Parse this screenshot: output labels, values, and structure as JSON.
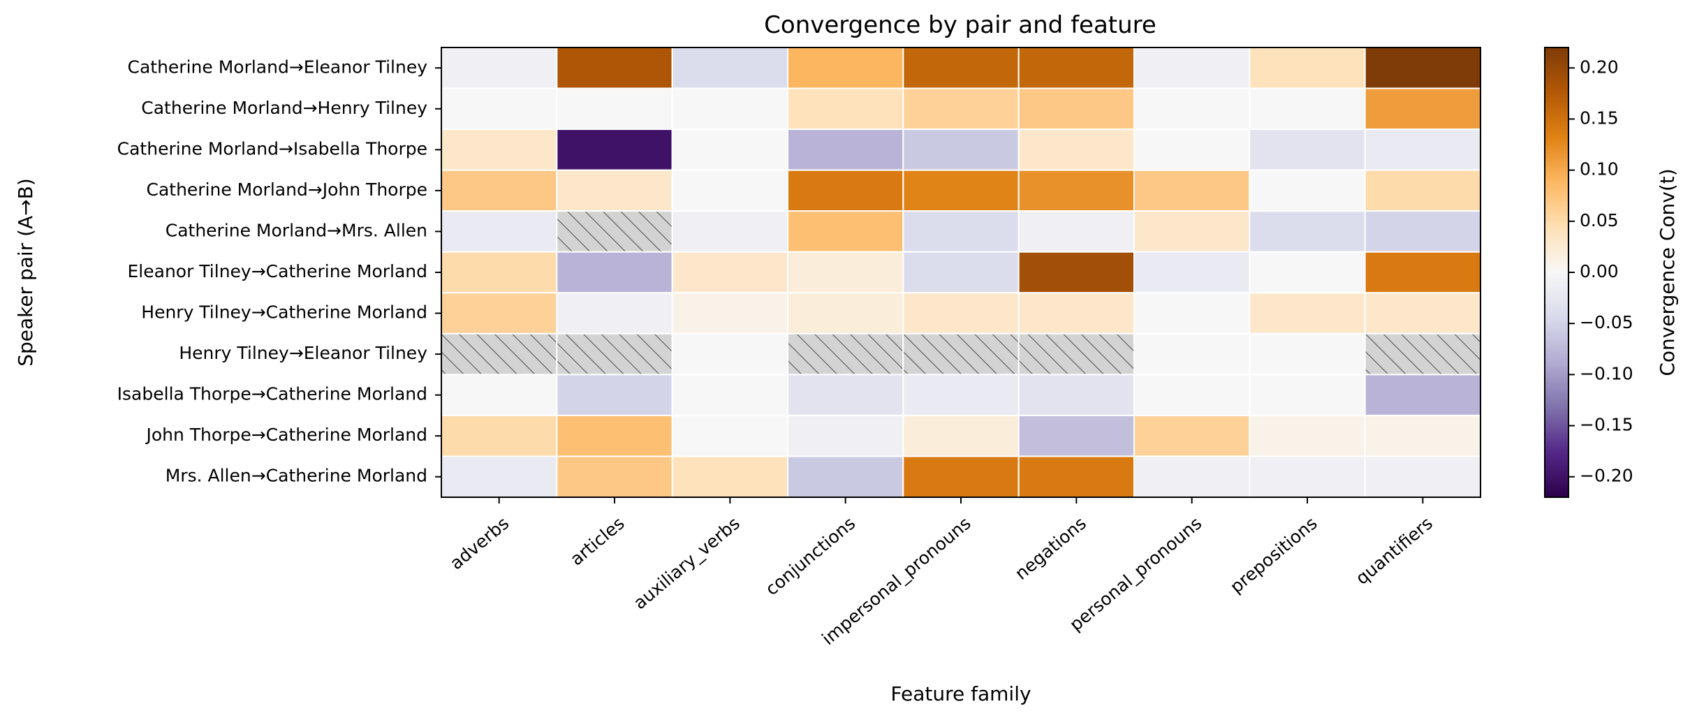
{
  "chart_data": {
    "type": "heatmap",
    "title": "Convergence by pair and feature",
    "xlabel": "Feature family",
    "ylabel": "Speaker pair (A→B)",
    "colorbar_label": "Convergence Conv(t)",
    "colormap": "PuOr_r",
    "vmin": -0.22,
    "vmax": 0.22,
    "colorbar_ticks": [
      0.2,
      0.15,
      0.1,
      0.05,
      0.0,
      -0.05,
      -0.1,
      -0.15,
      -0.2
    ],
    "colorbar_tick_labels": [
      "0.20",
      "0.15",
      "0.10",
      "0.05",
      "0.00",
      "−0.05",
      "−0.10",
      "−0.15",
      "−0.20"
    ],
    "missing_style": "gray hatched",
    "x_categories": [
      "adverbs",
      "articles",
      "auxiliary_verbs",
      "conjunctions",
      "impersonal_pronouns",
      "negations",
      "personal_pronouns",
      "prepositions",
      "quantifiers"
    ],
    "y_categories": [
      "Catherine Morland→Eleanor Tilney",
      "Catherine Morland→Henry Tilney",
      "Catherine Morland→Isabella Thorpe",
      "Catherine Morland→John Thorpe",
      "Catherine Morland→Mrs. Allen",
      "Eleanor Tilney→Catherine Morland",
      "Henry Tilney→Catherine Morland",
      "Henry Tilney→Eleanor Tilney",
      "Isabella Thorpe→Catherine Morland",
      "John Thorpe→Catherine Morland",
      "Mrs. Allen→Catherine Morland"
    ],
    "values": [
      [
        -0.01,
        0.18,
        -0.04,
        0.09,
        0.16,
        0.16,
        -0.01,
        0.04,
        0.22
      ],
      [
        0.0,
        0.0,
        0.0,
        0.04,
        0.06,
        0.07,
        0.0,
        0.0,
        0.11
      ],
      [
        0.03,
        -0.2,
        0.0,
        -0.08,
        -0.06,
        0.03,
        0.0,
        -0.03,
        -0.02
      ],
      [
        0.07,
        0.03,
        0.0,
        0.14,
        0.13,
        0.12,
        0.07,
        0.0,
        0.05
      ],
      [
        -0.02,
        null,
        -0.01,
        0.08,
        -0.04,
        -0.01,
        0.03,
        -0.04,
        -0.05
      ],
      [
        0.05,
        -0.08,
        0.03,
        0.02,
        -0.04,
        0.19,
        -0.02,
        0.0,
        0.14
      ],
      [
        0.06,
        -0.01,
        0.01,
        0.02,
        0.03,
        0.03,
        0.0,
        0.03,
        0.03
      ],
      [
        null,
        null,
        0.0,
        null,
        null,
        null,
        0.0,
        0.0,
        null
      ],
      [
        0.0,
        -0.05,
        0.0,
        -0.03,
        -0.02,
        -0.03,
        0.0,
        0.0,
        -0.08
      ],
      [
        0.05,
        0.08,
        0.0,
        -0.01,
        0.02,
        -0.07,
        0.06,
        0.01,
        0.01
      ],
      [
        -0.02,
        0.07,
        0.04,
        -0.06,
        0.14,
        0.14,
        -0.01,
        -0.01,
        -0.01
      ]
    ]
  }
}
